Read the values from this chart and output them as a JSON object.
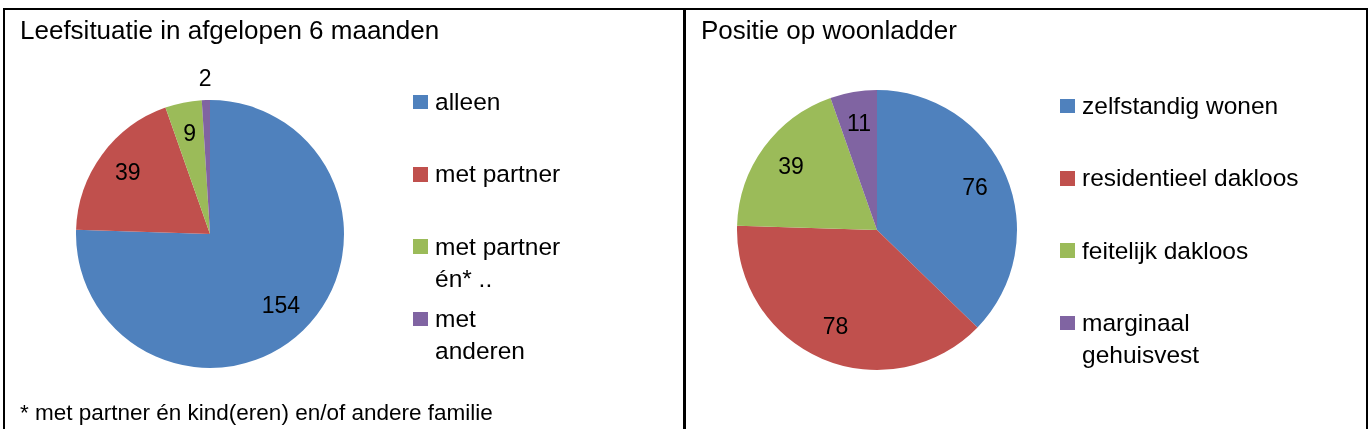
{
  "chart_data": [
    {
      "type": "pie",
      "title": "Leefsituatie in afgelopen 6 maanden",
      "categories": [
        "alleen",
        "met partner",
        "met partner én* ..",
        "met anderen"
      ],
      "values": [
        154,
        39,
        9,
        2
      ],
      "colors": [
        "#4f81bd",
        "#c0504d",
        "#9bbb59",
        "#8064a2"
      ],
      "data_labels": true,
      "legend": "right",
      "annotations": [
        "* met partner én kind(eren) en/of andere familie"
      ]
    },
    {
      "type": "pie",
      "title": "Positie op woonladder",
      "categories": [
        "zelfstandig wonen",
        "residentieel dakloos",
        "feitelijk dakloos",
        "marginaal gehuisvest"
      ],
      "values": [
        76,
        78,
        39,
        11
      ],
      "colors": [
        "#4f81bd",
        "#c0504d",
        "#9bbb59",
        "#8064a2"
      ],
      "data_labels": true,
      "legend": "right"
    }
  ]
}
